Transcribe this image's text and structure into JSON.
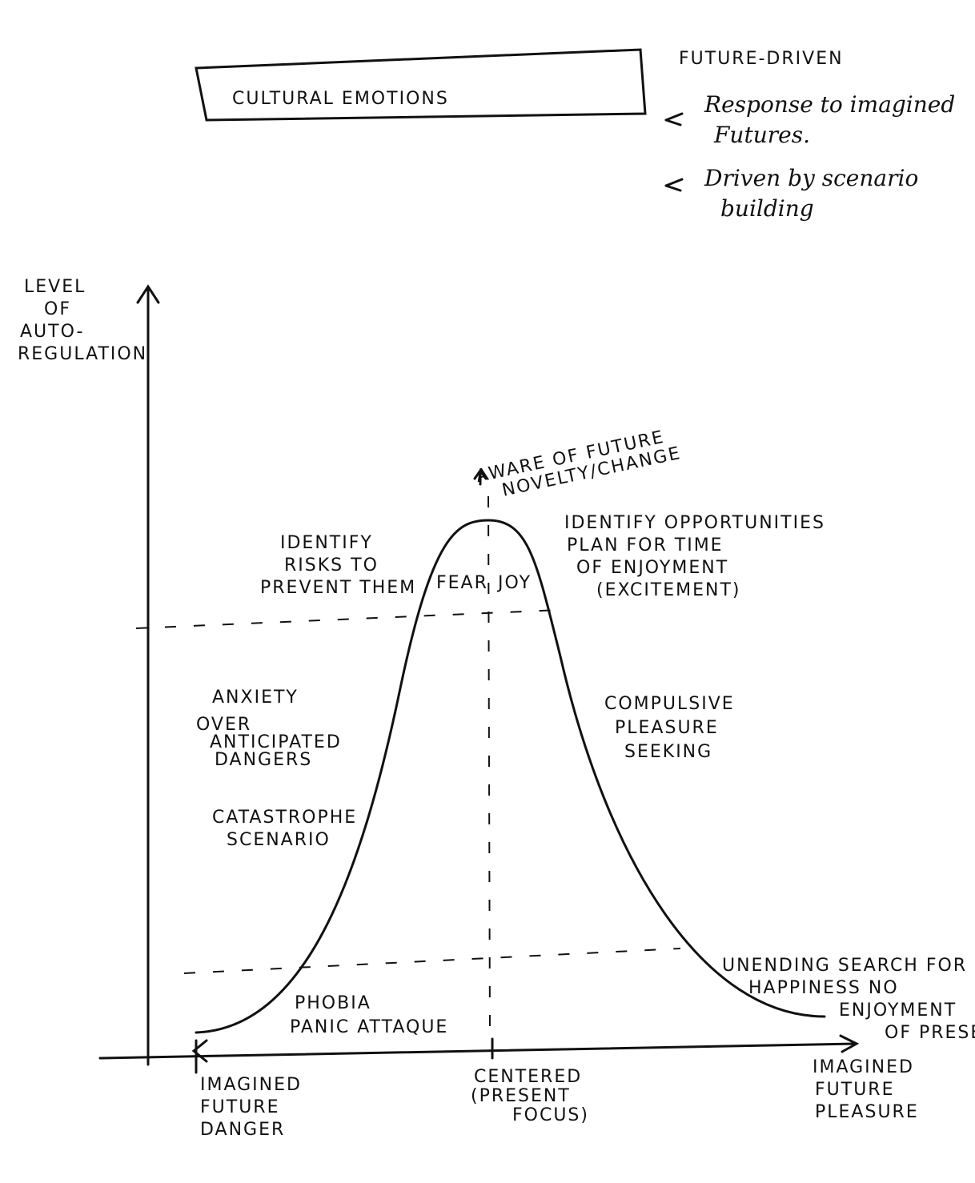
{
  "title": "CULTURAL EMOTIONS",
  "side_note": {
    "heading": "FUTURE-DRIVEN",
    "items": [
      [
        "Response to imagined",
        "Futures."
      ],
      [
        "Driven by scenario",
        "building"
      ]
    ]
  },
  "y_axis_label": [
    "LEVEL",
    "OF",
    "AUTO-",
    "REGULATION"
  ],
  "peak_label": [
    "AWARE OF FUTURE",
    "NOVELTY/CHANGE"
  ],
  "left_top": [
    "IDENTIFY",
    "RISKS TO",
    "PREVENT THEM"
  ],
  "fear": "FEAR",
  "joy": "JOY",
  "right_top": [
    "IDENTIFY OPPORTUNITIES",
    "PLAN FOR TIME",
    "OF ENJOYMENT",
    "(EXCITEMENT)"
  ],
  "anxiety": "ANXIETY",
  "anxiety_note": [
    "OVER",
    "ANTICIPATED",
    "DANGERS"
  ],
  "catastrophe": [
    "CATASTROPHE",
    "SCENARIO"
  ],
  "compulsive": [
    "COMPULSIVE",
    "PLEASURE",
    "SEEKING"
  ],
  "phobia": [
    "PHOBIA",
    "PANIC ATTAQUE"
  ],
  "unending": [
    "UNENDING SEARCH FOR",
    "HAPPINESS NO",
    "ENJOYMENT",
    "OF PRESENT"
  ],
  "x_labels": {
    "left": [
      "IMAGINED",
      "FUTURE",
      "DANGER"
    ],
    "center": [
      "CENTERED",
      "(PRESENT",
      "FOCUS)"
    ],
    "right": [
      "IMAGINED",
      "FUTURE",
      "PLEASURE"
    ]
  }
}
